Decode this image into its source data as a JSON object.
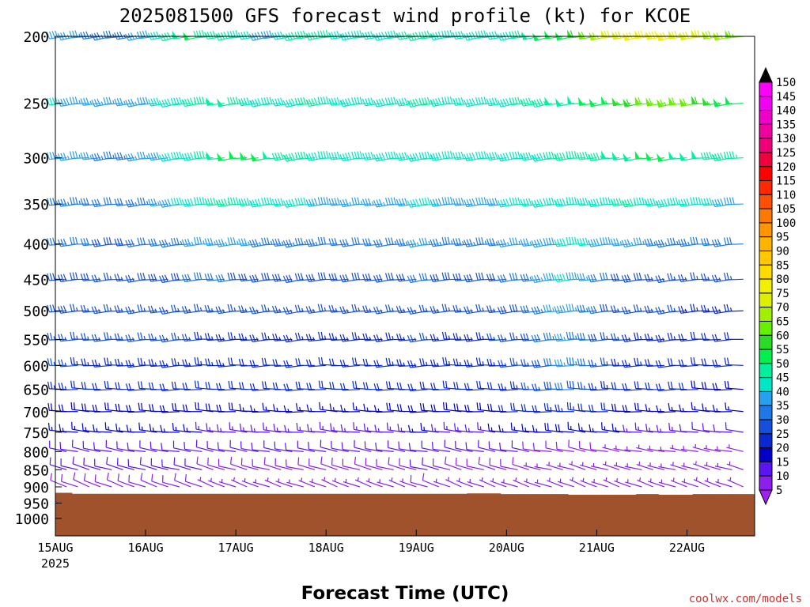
{
  "chart_data": {
    "type": "wind_barbs",
    "title": "2025081500 GFS forecast wind profile (kt) for KCOE",
    "xlabel": "Forecast Time (UTC)",
    "ylabel": "",
    "credit": "coolwx.com/models",
    "y_scale": "log",
    "y_inverted": true,
    "ylim": [
      200,
      1060
    ],
    "y_ticks": [
      "200",
      "250",
      "300",
      "350",
      "400",
      "450",
      "500",
      "550",
      "600",
      "650",
      "700",
      "750",
      "800",
      "850",
      "900",
      "950",
      "1000"
    ],
    "xlim_hours": [
      0,
      186
    ],
    "x_ticks": [
      {
        "label": "15AUG",
        "sub": "2025",
        "hour": 0
      },
      {
        "label": "16AUG",
        "sub": "",
        "hour": 24
      },
      {
        "label": "17AUG",
        "sub": "",
        "hour": 48
      },
      {
        "label": "18AUG",
        "sub": "",
        "hour": 72
      },
      {
        "label": "19AUG",
        "sub": "",
        "hour": 96
      },
      {
        "label": "20AUG",
        "sub": "",
        "hour": 120
      },
      {
        "label": "21AUG",
        "sub": "",
        "hour": 144
      },
      {
        "label": "22AUG",
        "sub": "",
        "hour": 168
      }
    ],
    "barb_hours_step": 3,
    "levels_hpa": [
      200,
      250,
      300,
      350,
      400,
      450,
      500,
      550,
      600,
      650,
      700,
      750,
      800,
      850,
      900,
      950
    ],
    "level_winds": [
      {
        "p": 200,
        "dir": 260,
        "speeds": [
          36,
          38,
          36,
          36,
          34,
          33,
          33,
          33,
          35,
          38,
          42,
          46,
          48,
          50,
          47,
          45,
          45,
          42,
          40,
          38,
          38,
          42,
          45,
          47,
          46,
          45,
          44,
          43,
          42,
          40,
          40,
          43,
          45,
          47,
          45,
          43,
          42,
          40,
          40,
          41,
          42,
          44,
          46,
          48,
          50,
          52,
          54,
          58,
          62,
          66,
          70,
          72,
          75,
          77,
          78,
          76,
          74,
          72,
          70,
          68,
          66,
          64,
          63
        ]
      },
      {
        "p": 250,
        "dir": 262,
        "speeds": [
          38,
          40,
          38,
          37,
          36,
          35,
          35,
          35,
          36,
          38,
          40,
          42,
          44,
          46,
          47,
          48,
          48,
          46,
          44,
          42,
          40,
          42,
          44,
          46,
          45,
          44,
          43,
          42,
          42,
          41,
          40,
          42,
          44,
          46,
          45,
          44,
          43,
          42,
          41,
          41,
          42,
          43,
          45,
          46,
          47,
          48,
          48,
          49,
          50,
          52,
          54,
          56,
          58,
          60,
          62,
          63,
          62,
          60,
          58,
          56,
          54,
          52,
          50
        ]
      },
      {
        "p": 300,
        "dir": 263,
        "speeds": [
          36,
          37,
          36,
          35,
          35,
          34,
          34,
          34,
          35,
          36,
          38,
          40,
          42,
          44,
          46,
          48,
          50,
          52,
          54,
          50,
          48,
          46,
          45,
          46,
          44,
          42,
          41,
          40,
          40,
          40,
          40,
          41,
          42,
          44,
          43,
          42,
          41,
          40,
          40,
          40,
          41,
          42,
          43,
          44,
          44,
          45,
          45,
          46,
          46,
          47,
          48,
          48,
          49,
          50,
          50,
          50,
          49,
          48,
          48,
          47,
          46,
          45,
          44
        ]
      },
      {
        "p": 350,
        "dir": 264,
        "speeds": [
          33,
          34,
          33,
          33,
          32,
          32,
          32,
          32,
          33,
          34,
          36,
          38,
          40,
          42,
          44,
          46,
          47,
          46,
          44,
          42,
          40,
          40,
          40,
          40,
          39,
          38,
          38,
          37,
          37,
          37,
          37,
          38,
          39,
          40,
          40,
          39,
          39,
          38,
          38,
          38,
          39,
          40,
          41,
          42,
          42,
          43,
          43,
          44,
          44,
          44,
          44,
          45,
          45,
          44,
          44,
          43,
          42,
          42,
          41,
          40,
          39,
          38,
          37
        ]
      },
      {
        "p": 400,
        "dir": 264,
        "speeds": [
          31,
          31,
          31,
          30,
          30,
          29,
          29,
          29,
          30,
          31,
          32,
          33,
          34,
          35,
          36,
          37,
          37,
          36,
          35,
          34,
          33,
          33,
          33,
          33,
          33,
          32,
          32,
          32,
          32,
          32,
          32,
          33,
          34,
          35,
          35,
          34,
          34,
          33,
          33,
          33,
          34,
          35,
          36,
          37,
          38,
          39,
          40,
          40,
          40,
          39,
          38,
          37,
          36,
          35,
          34,
          33,
          33,
          33,
          32,
          32,
          31,
          31,
          30
        ]
      },
      {
        "p": 450,
        "dir": 264,
        "speeds": [
          29,
          29,
          29,
          28,
          28,
          27,
          27,
          27,
          27,
          28,
          28,
          29,
          29,
          30,
          30,
          30,
          30,
          29,
          29,
          28,
          28,
          28,
          28,
          28,
          28,
          28,
          28,
          28,
          28,
          28,
          28,
          29,
          29,
          30,
          30,
          29,
          29,
          29,
          28,
          28,
          29,
          30,
          31,
          33,
          35,
          38,
          40,
          38,
          35,
          32,
          30,
          29,
          28,
          28,
          27,
          27,
          27,
          27,
          26,
          26,
          26,
          26,
          26
        ]
      },
      {
        "p": 500,
        "dir": 264,
        "speeds": [
          28,
          28,
          28,
          27,
          27,
          26,
          26,
          26,
          26,
          26,
          26,
          27,
          27,
          27,
          27,
          27,
          26,
          26,
          26,
          25,
          25,
          25,
          25,
          25,
          25,
          25,
          25,
          25,
          25,
          25,
          25,
          26,
          26,
          27,
          27,
          26,
          26,
          26,
          26,
          26,
          27,
          28,
          29,
          31,
          33,
          36,
          38,
          36,
          33,
          30,
          28,
          27,
          26,
          26,
          25,
          25,
          25,
          24,
          24,
          24,
          24,
          24,
          24
        ]
      },
      {
        "p": 550,
        "dir": 266,
        "speeds": [
          26,
          26,
          26,
          25,
          25,
          25,
          25,
          25,
          25,
          25,
          25,
          25,
          25,
          25,
          24,
          24,
          24,
          24,
          23,
          23,
          23,
          23,
          23,
          23,
          23,
          23,
          23,
          23,
          23,
          23,
          23,
          24,
          24,
          25,
          25,
          24,
          24,
          24,
          24,
          24,
          25,
          26,
          27,
          28,
          30,
          33,
          36,
          34,
          31,
          28,
          26,
          25,
          24,
          24,
          23,
          23,
          23,
          22,
          22,
          22,
          22,
          22,
          22
        ]
      },
      {
        "p": 600,
        "dir": 268,
        "speeds": [
          25,
          25,
          25,
          24,
          24,
          24,
          24,
          24,
          24,
          24,
          24,
          24,
          24,
          23,
          23,
          23,
          23,
          22,
          22,
          22,
          22,
          22,
          22,
          22,
          22,
          22,
          22,
          22,
          22,
          22,
          22,
          23,
          23,
          24,
          24,
          23,
          23,
          23,
          23,
          23,
          24,
          25,
          26,
          27,
          29,
          32,
          35,
          33,
          30,
          27,
          25,
          24,
          23,
          23,
          22,
          22,
          22,
          21,
          21,
          21,
          21,
          21,
          21
        ]
      },
      {
        "p": 650,
        "dir": 270,
        "speeds": [
          23,
          23,
          23,
          22,
          22,
          22,
          22,
          22,
          22,
          22,
          22,
          22,
          22,
          21,
          21,
          21,
          21,
          21,
          20,
          20,
          20,
          20,
          20,
          20,
          20,
          20,
          20,
          20,
          20,
          20,
          20,
          21,
          21,
          22,
          22,
          21,
          21,
          21,
          21,
          21,
          22,
          23,
          24,
          25,
          26,
          28,
          30,
          28,
          26,
          24,
          23,
          22,
          21,
          21,
          20,
          20,
          20,
          20,
          19,
          19,
          19,
          19,
          19
        ]
      },
      {
        "p": 700,
        "dir": 272,
        "speeds": [
          18,
          19,
          19,
          19,
          19,
          19,
          19,
          19,
          19,
          19,
          19,
          19,
          19,
          19,
          18,
          18,
          18,
          18,
          17,
          17,
          17,
          17,
          17,
          17,
          17,
          17,
          17,
          17,
          17,
          17,
          17,
          18,
          18,
          19,
          19,
          18,
          18,
          18,
          18,
          18,
          19,
          20,
          21,
          22,
          22,
          23,
          24,
          23,
          22,
          21,
          20,
          19,
          18,
          18,
          17,
          17,
          17,
          16,
          16,
          16,
          16,
          16,
          16
        ]
      },
      {
        "p": 750,
        "dir": 275,
        "speeds": [
          14,
          15,
          15,
          15,
          15,
          15,
          15,
          15,
          15,
          15,
          15,
          15,
          15,
          15,
          14,
          14,
          14,
          14,
          13,
          13,
          13,
          13,
          13,
          13,
          13,
          13,
          13,
          13,
          13,
          13,
          13,
          14,
          14,
          15,
          15,
          14,
          14,
          14,
          14,
          14,
          15,
          15,
          16,
          17,
          17,
          18,
          18,
          17,
          17,
          16,
          15,
          15,
          14,
          14,
          13,
          13,
          13,
          12,
          12,
          12,
          12,
          12,
          12
        ]
      },
      {
        "p": 800,
        "dir": 280,
        "speeds": [
          11,
          12,
          12,
          12,
          12,
          12,
          12,
          12,
          12,
          12,
          12,
          12,
          12,
          12,
          11,
          11,
          11,
          11,
          10,
          10,
          10,
          10,
          10,
          10,
          10,
          10,
          10,
          10,
          10,
          10,
          10,
          11,
          11,
          12,
          12,
          11,
          11,
          11,
          11,
          11,
          11,
          10,
          10,
          9,
          9,
          9,
          8,
          8,
          8,
          8,
          7,
          7,
          7,
          7,
          7,
          7,
          7,
          7,
          7,
          7,
          7,
          7,
          7
        ]
      },
      {
        "p": 850,
        "dir": 285,
        "speeds": [
          9,
          10,
          10,
          10,
          10,
          10,
          10,
          10,
          10,
          10,
          10,
          10,
          10,
          10,
          9,
          9,
          9,
          9,
          9,
          9,
          9,
          9,
          9,
          9,
          9,
          9,
          9,
          9,
          9,
          9,
          9,
          9,
          9,
          10,
          10,
          9,
          9,
          9,
          9,
          9,
          9,
          8,
          8,
          7,
          7,
          7,
          7,
          6,
          6,
          6,
          6,
          6,
          6,
          6,
          6,
          6,
          6,
          6,
          6,
          6,
          6,
          6,
          6
        ]
      },
      {
        "p": 900,
        "dir": 290,
        "speeds": [
          7,
          8,
          8,
          8,
          8,
          8,
          8,
          8,
          8,
          8,
          8,
          8,
          8,
          8,
          7,
          7,
          7,
          7,
          7,
          7,
          7,
          7,
          7,
          7,
          7,
          7,
          7,
          7,
          7,
          7,
          7,
          7,
          7,
          8,
          8,
          7,
          7,
          7,
          7,
          7,
          7,
          6,
          6,
          6,
          6,
          6,
          6,
          5,
          5,
          5,
          5,
          5,
          5,
          5,
          5,
          5,
          5,
          5,
          5,
          5,
          5,
          5,
          5
        ]
      },
      {
        "p": 950,
        "dir": 290,
        "speeds": [
          6,
          6,
          6,
          6,
          6,
          6,
          6,
          6,
          6,
          6,
          6,
          6,
          6,
          6,
          6,
          6,
          6,
          6,
          6,
          6,
          6,
          6,
          6,
          6,
          6,
          6,
          6,
          6,
          6,
          6,
          6,
          6,
          6,
          6,
          6,
          6,
          6,
          6,
          6,
          6,
          6,
          5,
          5,
          5,
          5,
          5,
          5,
          5,
          5,
          5,
          5,
          5,
          5,
          5,
          5,
          5,
          5,
          5,
          5,
          5,
          5,
          5,
          5
        ]
      }
    ],
    "surface_pressure_hpa": [
      918,
      918,
      921,
      921,
      921,
      921,
      921,
      921,
      921,
      921,
      921,
      921,
      921,
      921,
      921,
      921,
      921,
      921,
      921,
      921,
      921,
      921,
      921,
      921,
      921,
      921,
      921,
      921,
      921,
      921,
      921,
      921,
      921,
      921,
      921,
      921,
      921,
      920,
      920,
      920,
      922,
      922,
      922,
      922,
      922,
      922,
      924,
      924,
      924,
      924,
      924,
      924,
      922,
      922,
      924,
      924,
      924,
      922,
      922,
      922,
      922,
      922,
      922
    ],
    "terrain_color": "#a0522d",
    "colorbar": {
      "labels": [
        "5",
        "10",
        "15",
        "20",
        "25",
        "30",
        "35",
        "40",
        "45",
        "50",
        "55",
        "60",
        "65",
        "70",
        "75",
        "80",
        "85",
        "90",
        "95",
        "100",
        "105",
        "110",
        "115",
        "120",
        "125",
        "130",
        "135",
        "140",
        "145",
        "150"
      ],
      "colors": [
        "#a020f0",
        "#8c1ef0",
        "#5a14f5",
        "#0000c8",
        "#0a28d2",
        "#1450dc",
        "#1e78e6",
        "#28a0f0",
        "#00e6c8",
        "#00f0a0",
        "#00f050",
        "#28dc28",
        "#64f000",
        "#a0f000",
        "#dcf000",
        "#f0f000",
        "#ffdc00",
        "#ffc800",
        "#ffb400",
        "#ff9600",
        "#ff7800",
        "#ff5000",
        "#ff2800",
        "#ff0000",
        "#f0003c",
        "#f00078",
        "#f000a0",
        "#f000c8",
        "#f000f0",
        "#ff00ff"
      ]
    }
  }
}
